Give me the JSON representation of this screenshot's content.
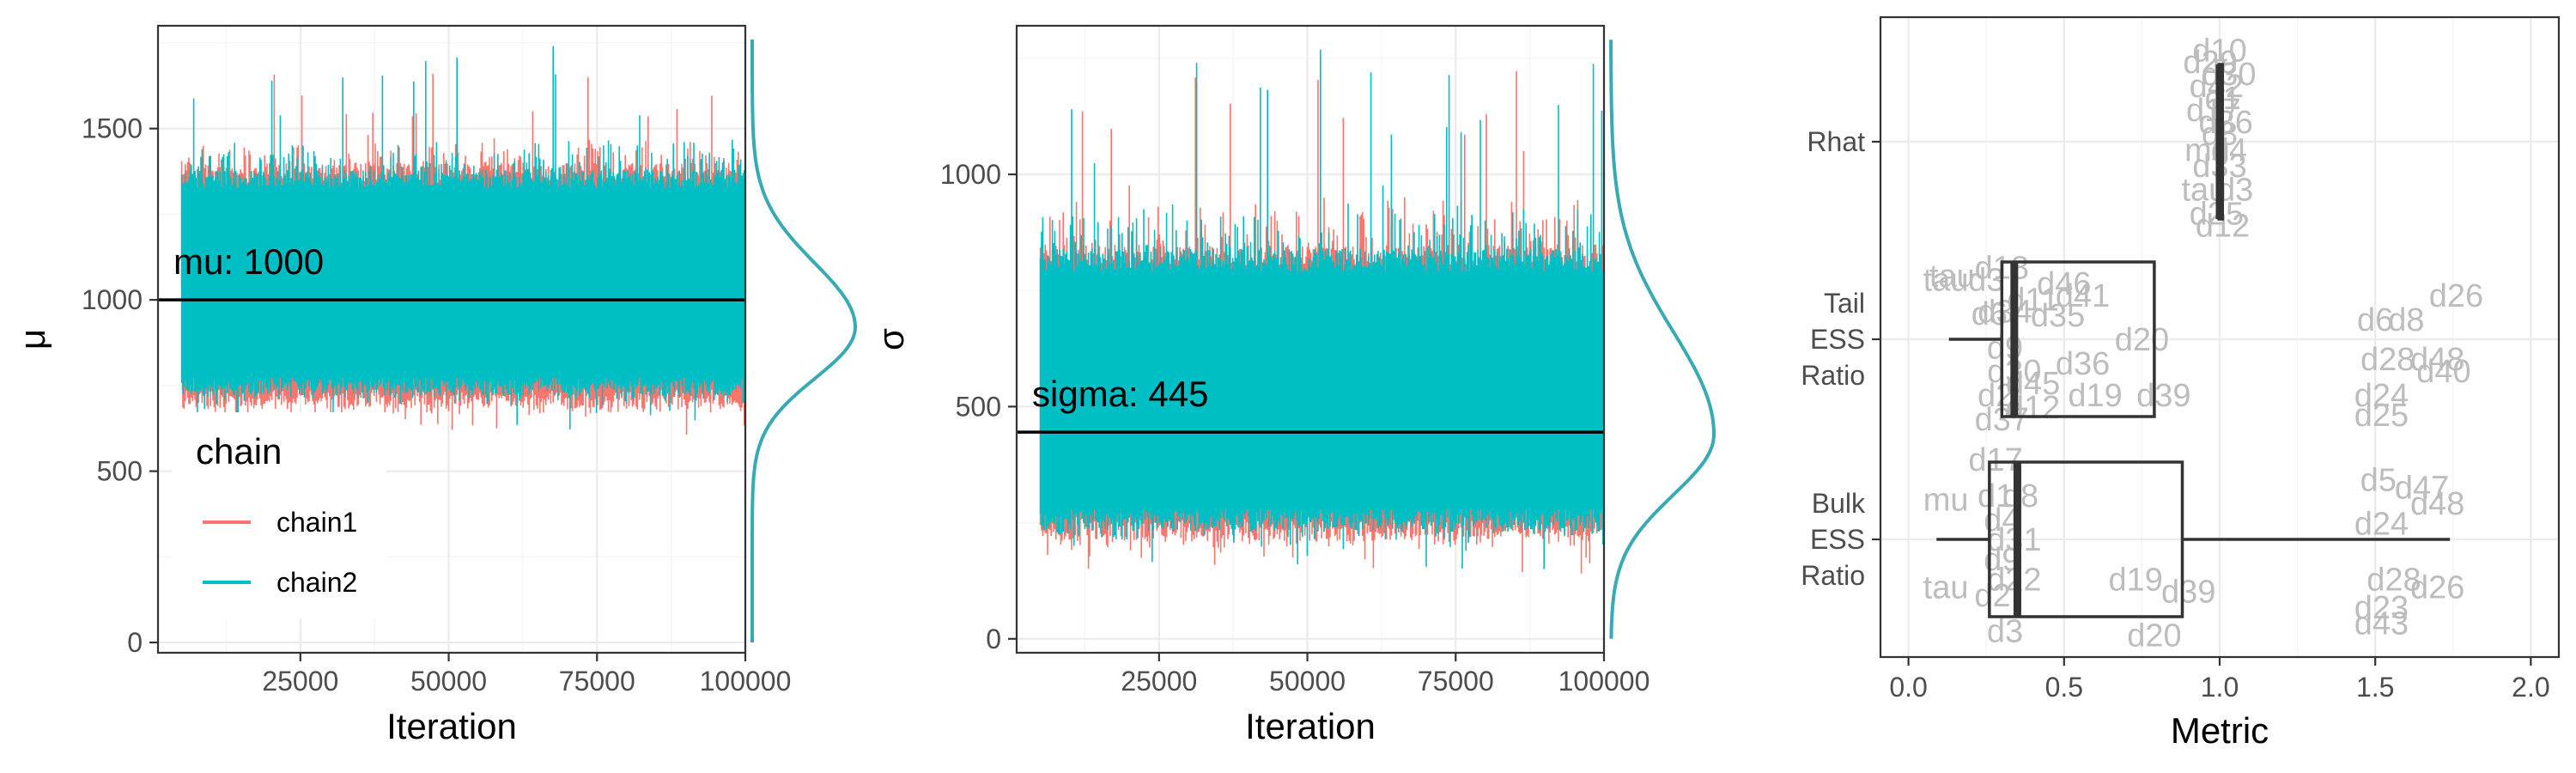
{
  "colors": {
    "chain1": "#F8766D",
    "chain2": "#00BFC4",
    "density": "#38AAB4",
    "point_label": "#BDBDBD",
    "box": "#333333"
  },
  "chart_data": [
    {
      "type": "line",
      "subtype": "trace-with-marginal-density",
      "xlabel": "Iteration",
      "ylabel": "μ",
      "xlim": [
        1000,
        100000
      ],
      "ylim": [
        -30,
        1800
      ],
      "xticks": [
        25000,
        50000,
        75000,
        100000
      ],
      "xtick_labels": [
        "25000",
        "50000",
        "75000",
        "100000"
      ],
      "yticks": [
        0,
        500,
        1000,
        1500
      ],
      "ytick_labels": [
        "0",
        "500",
        "1000",
        "1500"
      ],
      "grid": true,
      "series": [
        {
          "name": "chain1",
          "x_start": 5000,
          "x_end": 100000,
          "band": [
            680,
            1400
          ],
          "spikes_low": 600,
          "spikes_high": 1680
        },
        {
          "name": "chain2",
          "x_start": 5000,
          "x_end": 100000,
          "band": [
            720,
            1380
          ],
          "spikes_low": 620,
          "spikes_high": 1760
        }
      ],
      "density": {
        "mode": 920,
        "min": 0,
        "max": 1760
      },
      "reference_line": {
        "y": 1000,
        "label": "mu: 1000"
      },
      "legend": {
        "title": "chain",
        "position": "bottom-left",
        "entries": [
          "chain1",
          "chain2"
        ]
      }
    },
    {
      "type": "line",
      "subtype": "trace-with-marginal-density",
      "xlabel": "Iteration",
      "ylabel": "σ",
      "xlim": [
        1000,
        100000
      ],
      "ylim": [
        -30,
        1320
      ],
      "xticks": [
        25000,
        50000,
        75000,
        100000
      ],
      "xtick_labels": [
        "25000",
        "50000",
        "75000",
        "100000"
      ],
      "yticks": [
        0,
        500,
        1000
      ],
      "ytick_labels": [
        "0",
        "500",
        "1000"
      ],
      "grid": true,
      "series": [
        {
          "name": "chain1",
          "x_start": 5000,
          "x_end": 100000,
          "band": [
            210,
            850
          ],
          "spikes_low": 140,
          "spikes_high": 1290
        },
        {
          "name": "chain2",
          "x_start": 5000,
          "x_end": 100000,
          "band": [
            230,
            840
          ],
          "spikes_low": 150,
          "spikes_high": 1270
        }
      ],
      "density": {
        "mode": 440,
        "min": 0,
        "max": 1290
      },
      "reference_line": {
        "y": 445,
        "label": "sigma: 445"
      }
    },
    {
      "type": "boxplot",
      "subtype": "boxplot-with-point-labels",
      "xlabel": "Metric",
      "ylabel": "",
      "xlim": [
        -0.09,
        2.09
      ],
      "xticks": [
        0.0,
        0.5,
        1.0,
        1.5,
        2.0
      ],
      "xtick_labels": [
        "0.0",
        "0.5",
        "1.0",
        "1.5",
        "2.0"
      ],
      "categories": [
        {
          "key": "rhat",
          "lines": [
            "Rhat"
          ]
        },
        {
          "key": "tail",
          "lines": [
            "Tail",
            "ESS",
            "Ratio"
          ]
        },
        {
          "key": "bulk",
          "lines": [
            "Bulk",
            "ESS",
            "Ratio"
          ]
        }
      ],
      "grid": true,
      "boxes": {
        "rhat": {
          "whisker_low": 0.995,
          "q1": 0.998,
          "median": 1.0,
          "q3": 1.002,
          "whisker_high": 1.005
        },
        "tail": {
          "whisker_low": 0.13,
          "q1": 0.3,
          "median": 0.34,
          "q3": 0.79,
          "whisker_high": 0.79
        },
        "bulk": {
          "whisker_low": 0.09,
          "q1": 0.26,
          "median": 0.35,
          "q3": 0.88,
          "whisker_high": 1.74
        }
      },
      "point_labels": {
        "rhat": [
          {
            "text": "d10",
            "x": 1.0,
            "y": 0.46
          },
          {
            "text": "d29",
            "x": 0.97,
            "y": 0.4
          },
          {
            "text": "d30",
            "x": 1.03,
            "y": 0.34
          },
          {
            "text": "d42",
            "x": 0.99,
            "y": 0.28
          },
          {
            "text": "d1",
            "x": 1.01,
            "y": 0.22
          },
          {
            "text": "d17",
            "x": 0.98,
            "y": 0.16
          },
          {
            "text": "d36",
            "x": 1.02,
            "y": 0.1
          },
          {
            "text": "d8",
            "x": 1.0,
            "y": 0.04
          },
          {
            "text": "mu",
            "x": 0.96,
            "y": -0.04
          },
          {
            "text": "d4",
            "x": 1.03,
            "y": -0.04
          },
          {
            "text": "d33",
            "x": 1.0,
            "y": -0.12
          },
          {
            "text": "tau",
            "x": 0.95,
            "y": -0.24
          },
          {
            "text": "d3",
            "x": 1.05,
            "y": -0.24
          },
          {
            "text": "d25",
            "x": 0.99,
            "y": -0.36
          },
          {
            "text": "d12",
            "x": 1.01,
            "y": -0.42
          }
        ],
        "tail": [
          {
            "text": "tau",
            "x": 0.12,
            "y": 0.3
          },
          {
            "text": "tau",
            "x": 0.14,
            "y": 0.32
          },
          {
            "text": "d3",
            "x": 0.25,
            "y": 0.3
          },
          {
            "text": "d18",
            "x": 0.3,
            "y": 0.36
          },
          {
            "text": "d46",
            "x": 0.5,
            "y": 0.28
          },
          {
            "text": "d41",
            "x": 0.56,
            "y": 0.22
          },
          {
            "text": "d11",
            "x": 0.4,
            "y": 0.2
          },
          {
            "text": "d6",
            "x": 0.26,
            "y": 0.13
          },
          {
            "text": "d34",
            "x": 0.31,
            "y": 0.14
          },
          {
            "text": "d35",
            "x": 0.48,
            "y": 0.12
          },
          {
            "text": "d20",
            "x": 0.75,
            "y": 0.0
          },
          {
            "text": "d9",
            "x": 0.31,
            "y": -0.04
          },
          {
            "text": "d36",
            "x": 0.56,
            "y": -0.12
          },
          {
            "text": "d30",
            "x": 0.34,
            "y": -0.16
          },
          {
            "text": "d45",
            "x": 0.4,
            "y": -0.22
          },
          {
            "text": "d19",
            "x": 0.6,
            "y": -0.28
          },
          {
            "text": "d39",
            "x": 0.82,
            "y": -0.28
          },
          {
            "text": "d2",
            "x": 0.28,
            "y": -0.28
          },
          {
            "text": "d12",
            "x": 0.4,
            "y": -0.34
          },
          {
            "text": "d37",
            "x": 0.3,
            "y": -0.4
          },
          {
            "text": "d26",
            "x": 1.76,
            "y": 0.22
          },
          {
            "text": "d6",
            "x": 1.5,
            "y": 0.1
          },
          {
            "text": "d8",
            "x": 1.6,
            "y": 0.1
          },
          {
            "text": "d28",
            "x": 1.54,
            "y": -0.1
          },
          {
            "text": "d48",
            "x": 1.7,
            "y": -0.1
          },
          {
            "text": "d40",
            "x": 1.72,
            "y": -0.16
          },
          {
            "text": "d24",
            "x": 1.52,
            "y": -0.28
          },
          {
            "text": "d25",
            "x": 1.52,
            "y": -0.38
          }
        ],
        "bulk": [
          {
            "text": "d17",
            "x": 0.28,
            "y": 0.4
          },
          {
            "text": "mu",
            "x": 0.12,
            "y": 0.2
          },
          {
            "text": "d1",
            "x": 0.28,
            "y": 0.22
          },
          {
            "text": "d8",
            "x": 0.36,
            "y": 0.22
          },
          {
            "text": "d4",
            "x": 0.3,
            "y": 0.1
          },
          {
            "text": "d31",
            "x": 0.34,
            "y": 0.0
          },
          {
            "text": "d9",
            "x": 0.3,
            "y": -0.1
          },
          {
            "text": "d22",
            "x": 0.34,
            "y": -0.2
          },
          {
            "text": "tau",
            "x": 0.12,
            "y": -0.24
          },
          {
            "text": "d2",
            "x": 0.27,
            "y": -0.28
          },
          {
            "text": "d19",
            "x": 0.73,
            "y": -0.2
          },
          {
            "text": "d39",
            "x": 0.9,
            "y": -0.26
          },
          {
            "text": "d20",
            "x": 0.79,
            "y": -0.48
          },
          {
            "text": "d3",
            "x": 0.31,
            "y": -0.46
          },
          {
            "text": "d5",
            "x": 1.51,
            "y": 0.3
          },
          {
            "text": "d47",
            "x": 1.65,
            "y": 0.26
          },
          {
            "text": "d48",
            "x": 1.7,
            "y": 0.18
          },
          {
            "text": "d24",
            "x": 1.52,
            "y": 0.08
          },
          {
            "text": "d28",
            "x": 1.56,
            "y": -0.2
          },
          {
            "text": "d26",
            "x": 1.7,
            "y": -0.24
          },
          {
            "text": "d23",
            "x": 1.52,
            "y": -0.34
          },
          {
            "text": "d43",
            "x": 1.52,
            "y": -0.42
          }
        ]
      }
    }
  ]
}
